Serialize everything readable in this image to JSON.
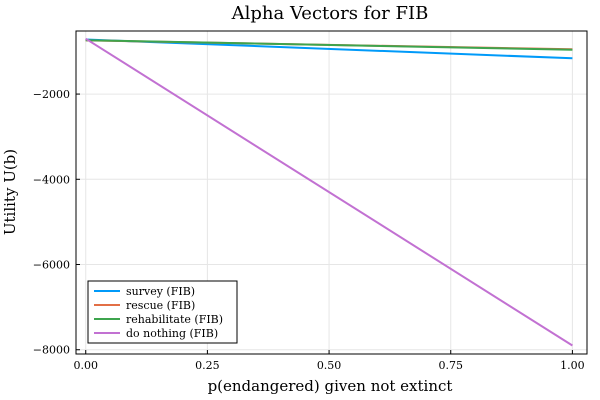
{
  "chart_data": {
    "type": "line",
    "title": "Alpha Vectors for FIB",
    "xlabel": "p(endangered) given not extinct",
    "ylabel": "Utility U(b)",
    "xlim": [
      -0.02,
      1.03
    ],
    "ylim": [
      -8100,
      -520
    ],
    "xticks": [
      0.0,
      0.25,
      0.5,
      0.75,
      1.0
    ],
    "xtick_labels": [
      "0.00",
      "0.25",
      "0.50",
      "0.75",
      "1.00"
    ],
    "yticks": [
      -8000,
      -6000,
      -4000,
      -2000
    ],
    "ytick_labels": [
      "−8000",
      "−6000",
      "−4000",
      "−2000"
    ],
    "grid": true,
    "legend_position": "bottom-left",
    "series": [
      {
        "name": "survey (FIB)",
        "color": "#009af9",
        "x": [
          0.0,
          1.0
        ],
        "y": [
          -720,
          -1160
        ]
      },
      {
        "name": "rescue (FIB)",
        "color": "#e26f46",
        "x": [
          0.0,
          1.0
        ],
        "y": [
          -740,
          -950
        ]
      },
      {
        "name": "rehabilitate (FIB)",
        "color": "#3da44d",
        "x": [
          0.0,
          1.0
        ],
        "y": [
          -735,
          -960
        ]
      },
      {
        "name": "do nothing (FIB)",
        "color": "#c271d2",
        "x": [
          0.0,
          1.0
        ],
        "y": [
          -700,
          -7900
        ]
      }
    ]
  }
}
